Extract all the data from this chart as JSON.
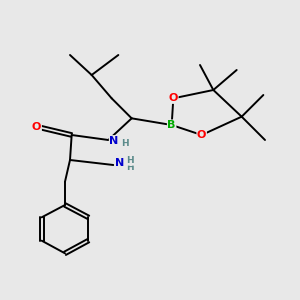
{
  "background_color": "#e8e8e8",
  "atom_colors": {
    "C": "#000000",
    "N": "#0000cd",
    "O": "#ff0000",
    "B": "#00aa00",
    "H": "#5a8a8a"
  },
  "figsize": [
    3.0,
    3.0
  ],
  "dpi": 100
}
